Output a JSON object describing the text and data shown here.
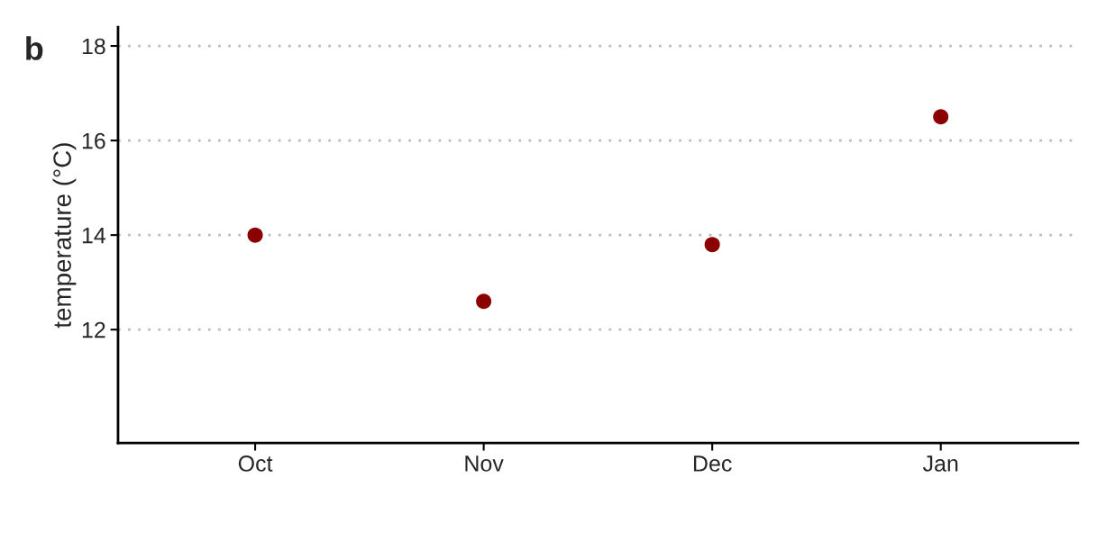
{
  "chart_data": {
    "type": "scatter",
    "ylabel": "temperature (°C)",
    "categories": [
      "Oct",
      "Nov",
      "Dec",
      "Jan"
    ],
    "series": [
      {
        "color": "#8b0000",
        "values": [
          14.0,
          12.6,
          13.8,
          16.5
        ]
      }
    ],
    "ylim": [
      9.6,
      18.4
    ],
    "yticks": [
      12,
      14,
      16,
      18
    ],
    "grid": "y",
    "marker": "circle",
    "annotations": [
      "b"
    ]
  }
}
